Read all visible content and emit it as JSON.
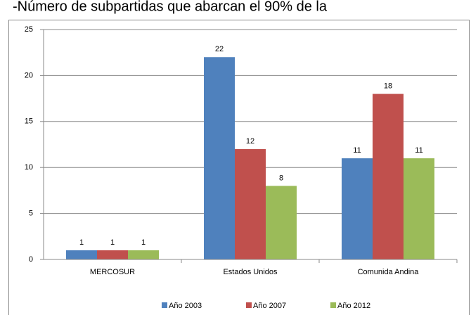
{
  "chart_data": {
    "type": "bar",
    "title": "-Número de subpartidas que abarcan el 90% de la",
    "categories": [
      "MERCOSUR",
      "Estados Unidos",
      "Comunida Andina"
    ],
    "series": [
      {
        "name": "Año 2003",
        "color": "#4f81bd",
        "values": [
          1,
          22,
          11
        ]
      },
      {
        "name": "Año 2007",
        "color": "#c0504d",
        "values": [
          1,
          12,
          18
        ]
      },
      {
        "name": "Año 2012",
        "color": "#9bbb59",
        "values": [
          1,
          8,
          11
        ]
      }
    ],
    "ylim": [
      0,
      25
    ],
    "yticks": [
      0,
      5,
      10,
      15,
      20,
      25
    ],
    "grid": true,
    "legend": "bottom"
  }
}
